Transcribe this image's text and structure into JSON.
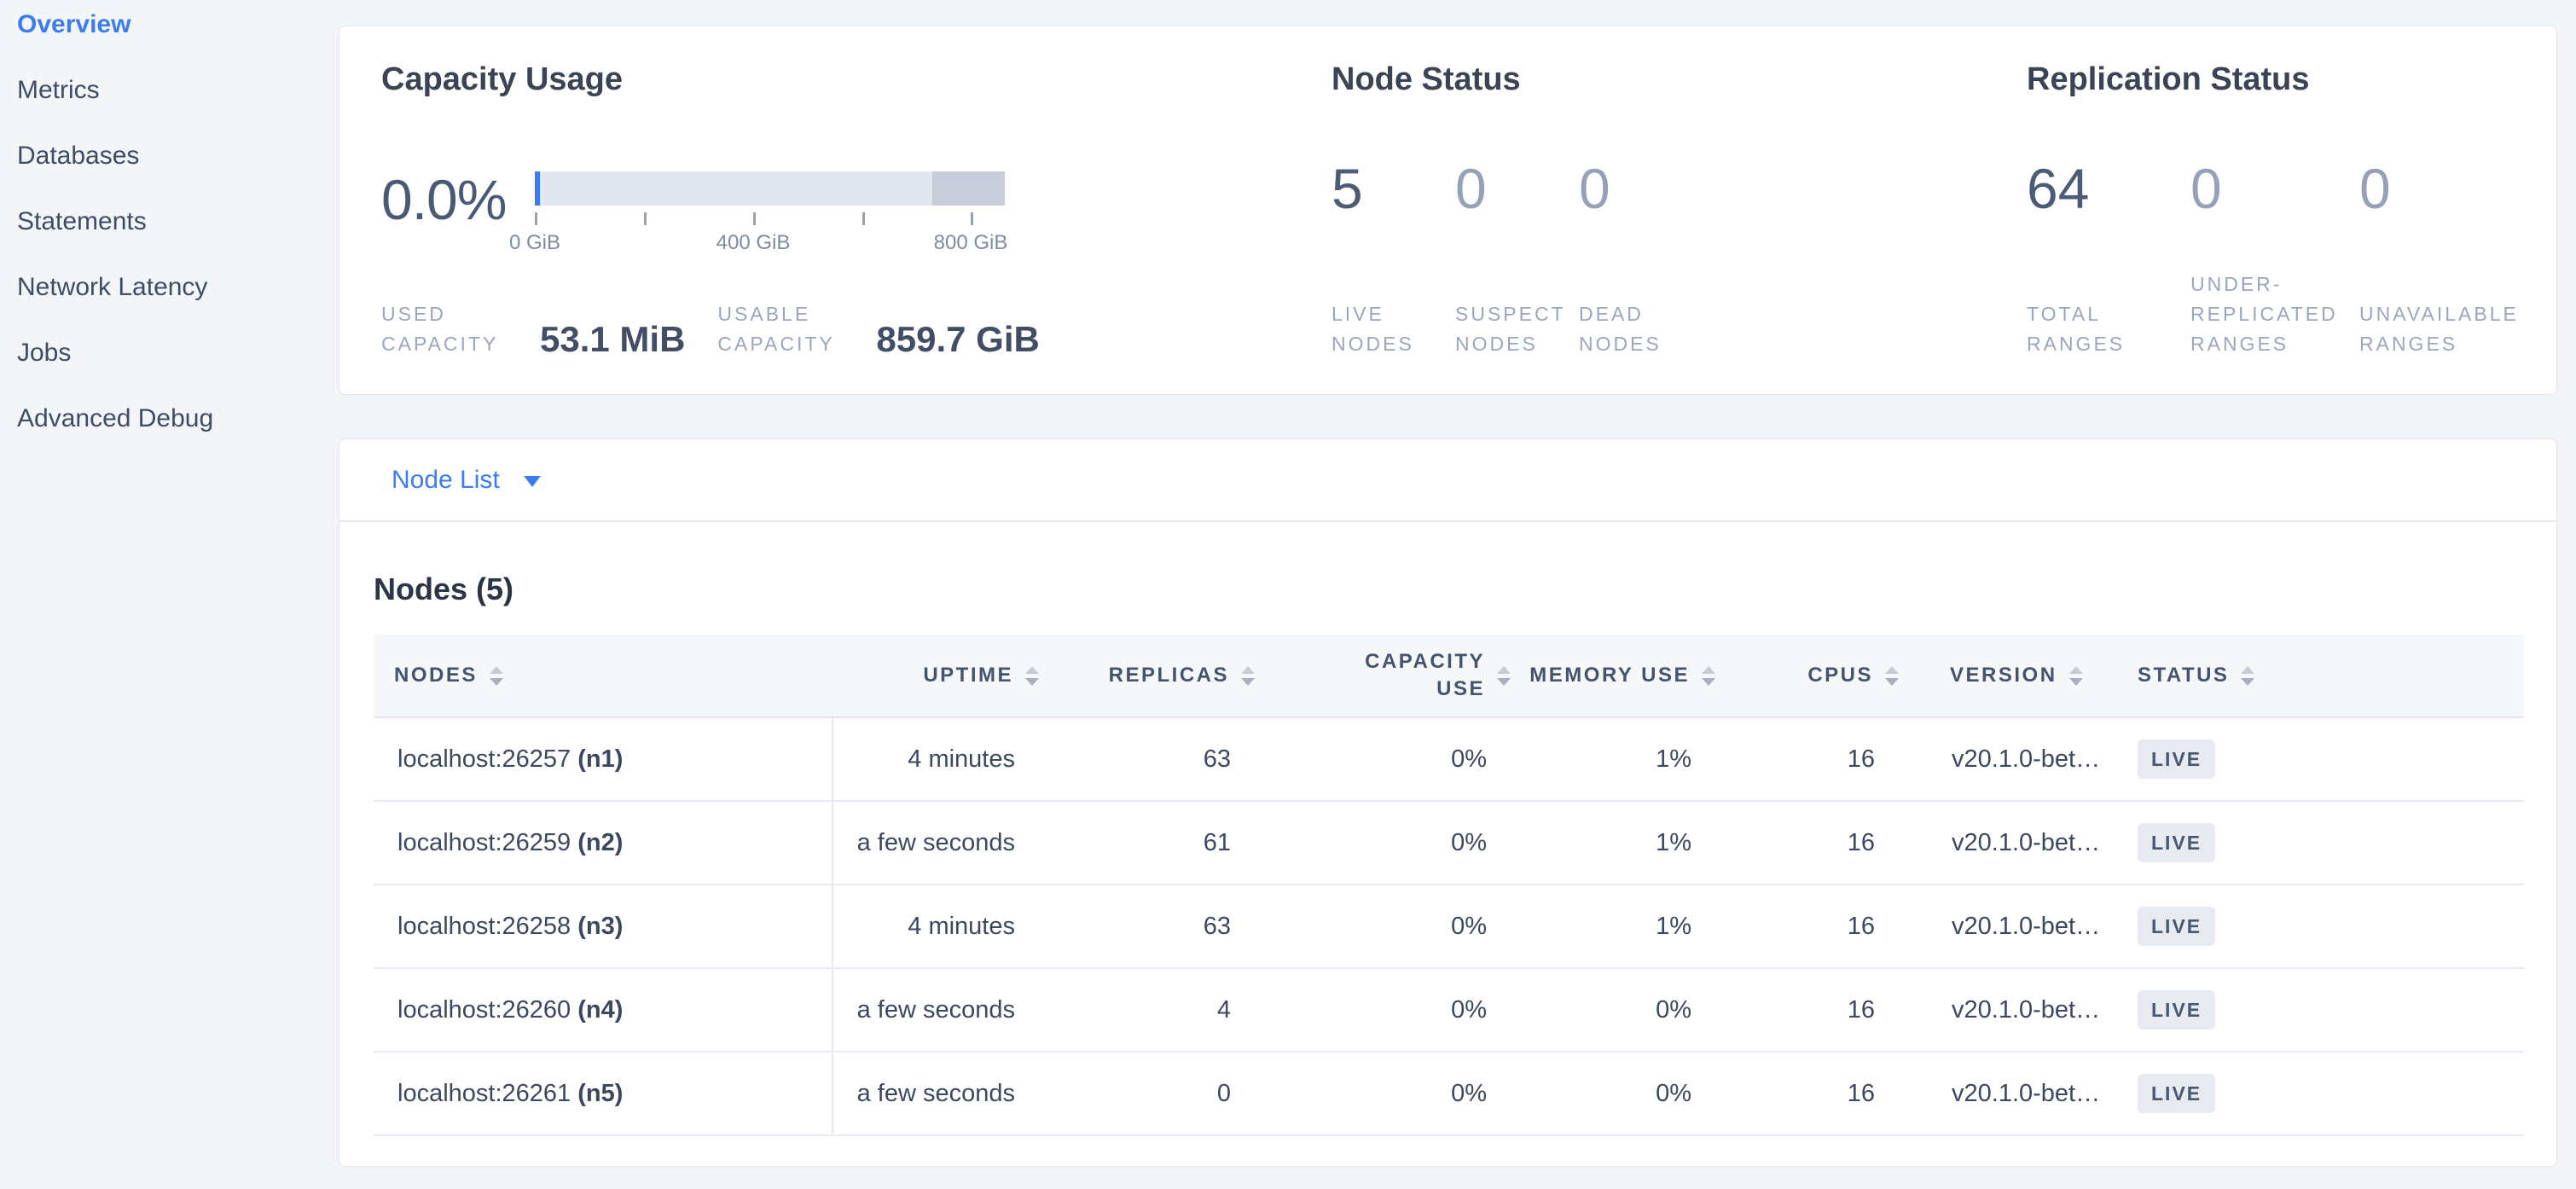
{
  "colors": {
    "accent_blue": "#3b7df0",
    "page_background": "#f3f5f8",
    "badge_background": "#e7eaf1",
    "badge_text": "#475872",
    "bar_track": "#e2e6ee",
    "bar_secondary": "#c7cdd9",
    "bar_used": "#3b7df0"
  },
  "sidebar": {
    "items": [
      {
        "label": "Overview",
        "active": true
      },
      {
        "label": "Metrics",
        "active": false
      },
      {
        "label": "Databases",
        "active": false
      },
      {
        "label": "Statements",
        "active": false
      },
      {
        "label": "Network Latency",
        "active": false
      },
      {
        "label": "Jobs",
        "active": false
      },
      {
        "label": "Advanced Debug",
        "active": false
      }
    ]
  },
  "summary": {
    "capacity": {
      "title": "Capacity Usage",
      "percent": "0.0%",
      "axis_ticks": {
        "t0": "0 GiB",
        "t400": "400 GiB",
        "t800": "800 GiB"
      },
      "used": {
        "label": "USED\nCAPACITY",
        "value": "53.1 MiB"
      },
      "usable": {
        "label": "USABLE\nCAPACITY",
        "value": "859.7 GiB"
      }
    },
    "node_status": {
      "title": "Node Status",
      "stats": [
        {
          "value": "5",
          "label": "LIVE\nNODES"
        },
        {
          "value": "0",
          "label": "SUSPECT\nNODES"
        },
        {
          "value": "0",
          "label": "DEAD\nNODES"
        }
      ]
    },
    "replication": {
      "title": "Replication Status",
      "stats": [
        {
          "value": "64",
          "label": "TOTAL\nRANGES"
        },
        {
          "value": "0",
          "label": "UNDER-\nREPLICATED\nRANGES"
        },
        {
          "value": "0",
          "label": "UNAVAILABLE\nRANGES"
        }
      ]
    }
  },
  "node_list": {
    "dropdown_label": "Node List",
    "section_title": "Nodes (5)",
    "columns": {
      "nodes": "NODES",
      "uptime": "UPTIME",
      "replicas": "REPLICAS",
      "capacity_use": "CAPACITY\nUSE",
      "memory_use": "MEMORY USE",
      "cpus": "CPUS",
      "version": "VERSION",
      "status": "STATUS"
    },
    "rows": [
      {
        "node": "localhost:26257",
        "id": "(n1)",
        "uptime": "4 minutes",
        "replicas": "63",
        "capacity_use": "0%",
        "memory_use": "1%",
        "cpus": "16",
        "version": "v20.1.0-bet…",
        "status": "LIVE"
      },
      {
        "node": "localhost:26259",
        "id": "(n2)",
        "uptime": "a few seconds",
        "replicas": "61",
        "capacity_use": "0%",
        "memory_use": "1%",
        "cpus": "16",
        "version": "v20.1.0-bet…",
        "status": "LIVE"
      },
      {
        "node": "localhost:26258",
        "id": "(n3)",
        "uptime": "4 minutes",
        "replicas": "63",
        "capacity_use": "0%",
        "memory_use": "1%",
        "cpus": "16",
        "version": "v20.1.0-bet…",
        "status": "LIVE"
      },
      {
        "node": "localhost:26260",
        "id": "(n4)",
        "uptime": "a few seconds",
        "replicas": "4",
        "capacity_use": "0%",
        "memory_use": "0%",
        "cpus": "16",
        "version": "v20.1.0-bet…",
        "status": "LIVE"
      },
      {
        "node": "localhost:26261",
        "id": "(n5)",
        "uptime": "a few seconds",
        "replicas": "0",
        "capacity_use": "0%",
        "memory_use": "0%",
        "cpus": "16",
        "version": "v20.1.0-bet…",
        "status": "LIVE"
      }
    ]
  }
}
